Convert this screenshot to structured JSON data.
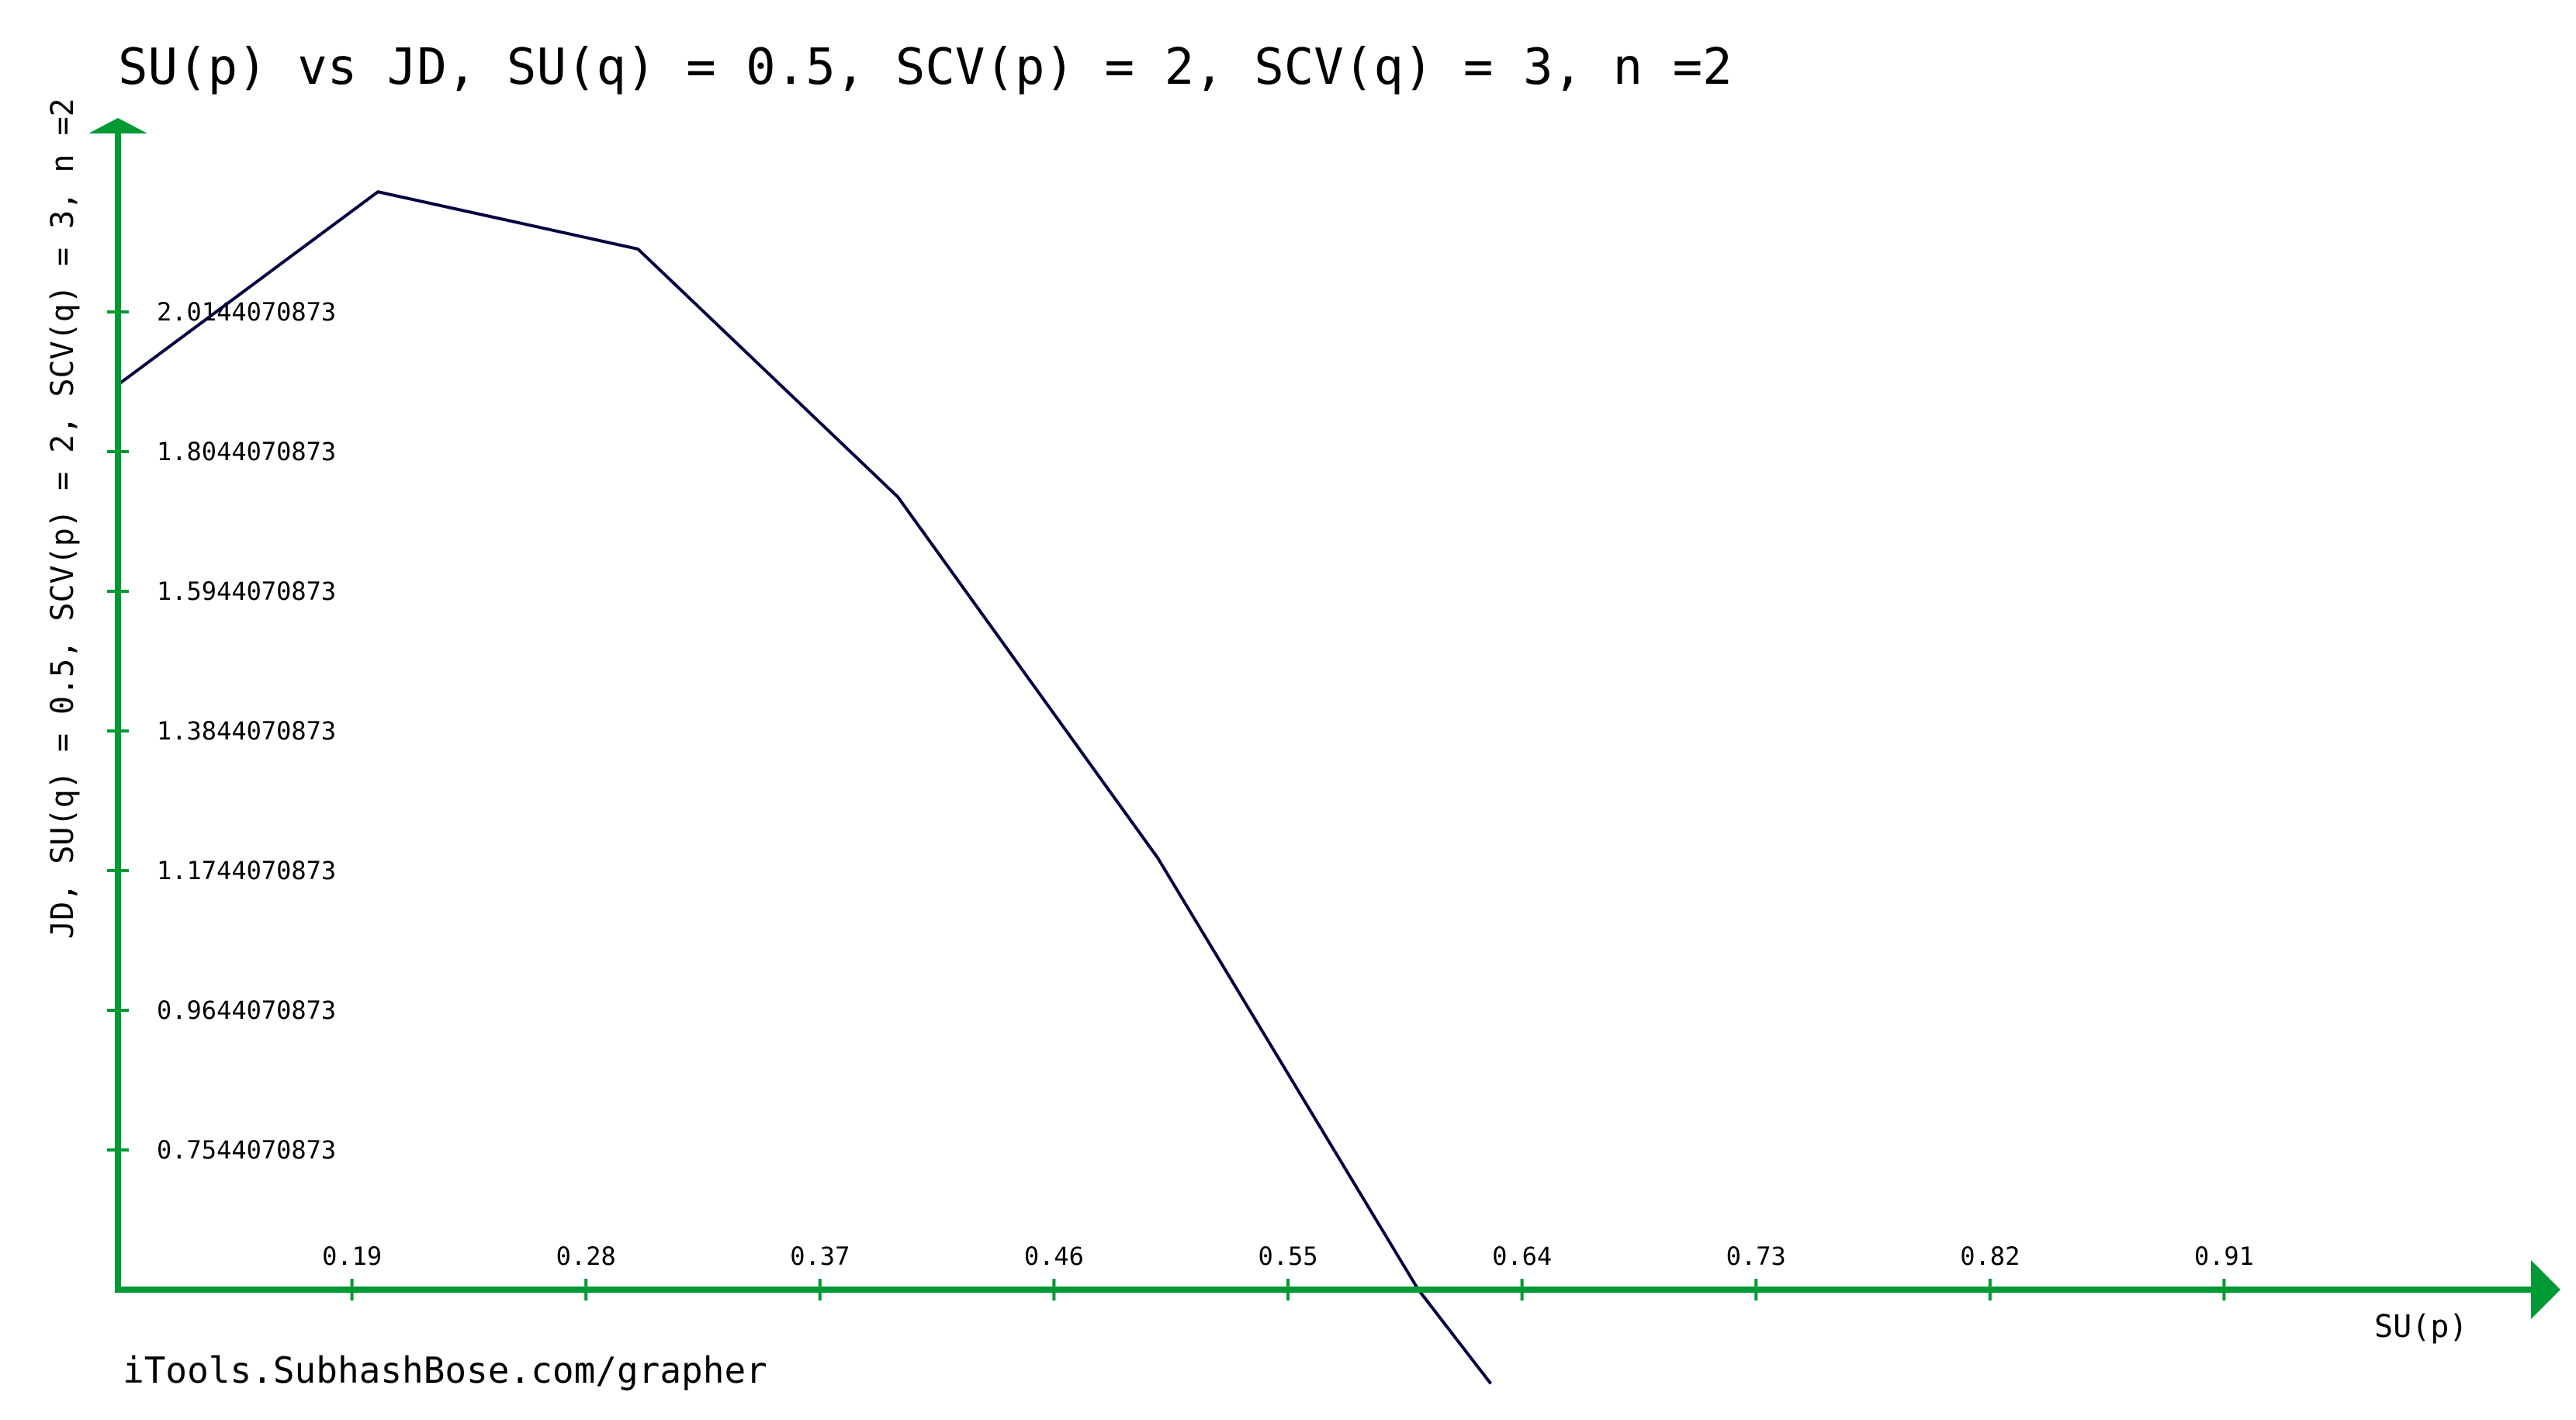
{
  "chart_data": {
    "type": "line",
    "title": "SU(p) vs JD, SU(q) = 0.5, SCV(p) = 2, SCV(q) = 3, n =2",
    "xlabel": "SU(p)",
    "ylabel": "JD, SU(q) = 0.5, SCV(p) = 2, SCV(q) = 3, n =2",
    "x_ticks": [
      "0.19",
      "0.28",
      "0.37",
      "0.46",
      "0.55",
      "0.64",
      "0.73",
      "0.82",
      "0.91"
    ],
    "y_ticks": [
      "0.7544070873",
      "0.9644070873",
      "1.1744070873",
      "1.3844070873",
      "1.5944070873",
      "1.8044070873",
      "2.0144070873"
    ],
    "xlim": [
      0.1,
      1.0
    ],
    "ylim": [
      0.5444,
      2.2944
    ],
    "grid": false,
    "series": [
      {
        "x": [
          0.1,
          0.2,
          0.3,
          0.4,
          0.5,
          0.6,
          0.628
        ],
        "y": [
          1.905,
          2.195,
          2.109,
          1.736,
          1.193,
          0.545,
          0.403
        ],
        "color": "#000040"
      }
    ],
    "axis_color": "#009933"
  },
  "credit": "iTools.SubhashBose.com/grapher"
}
